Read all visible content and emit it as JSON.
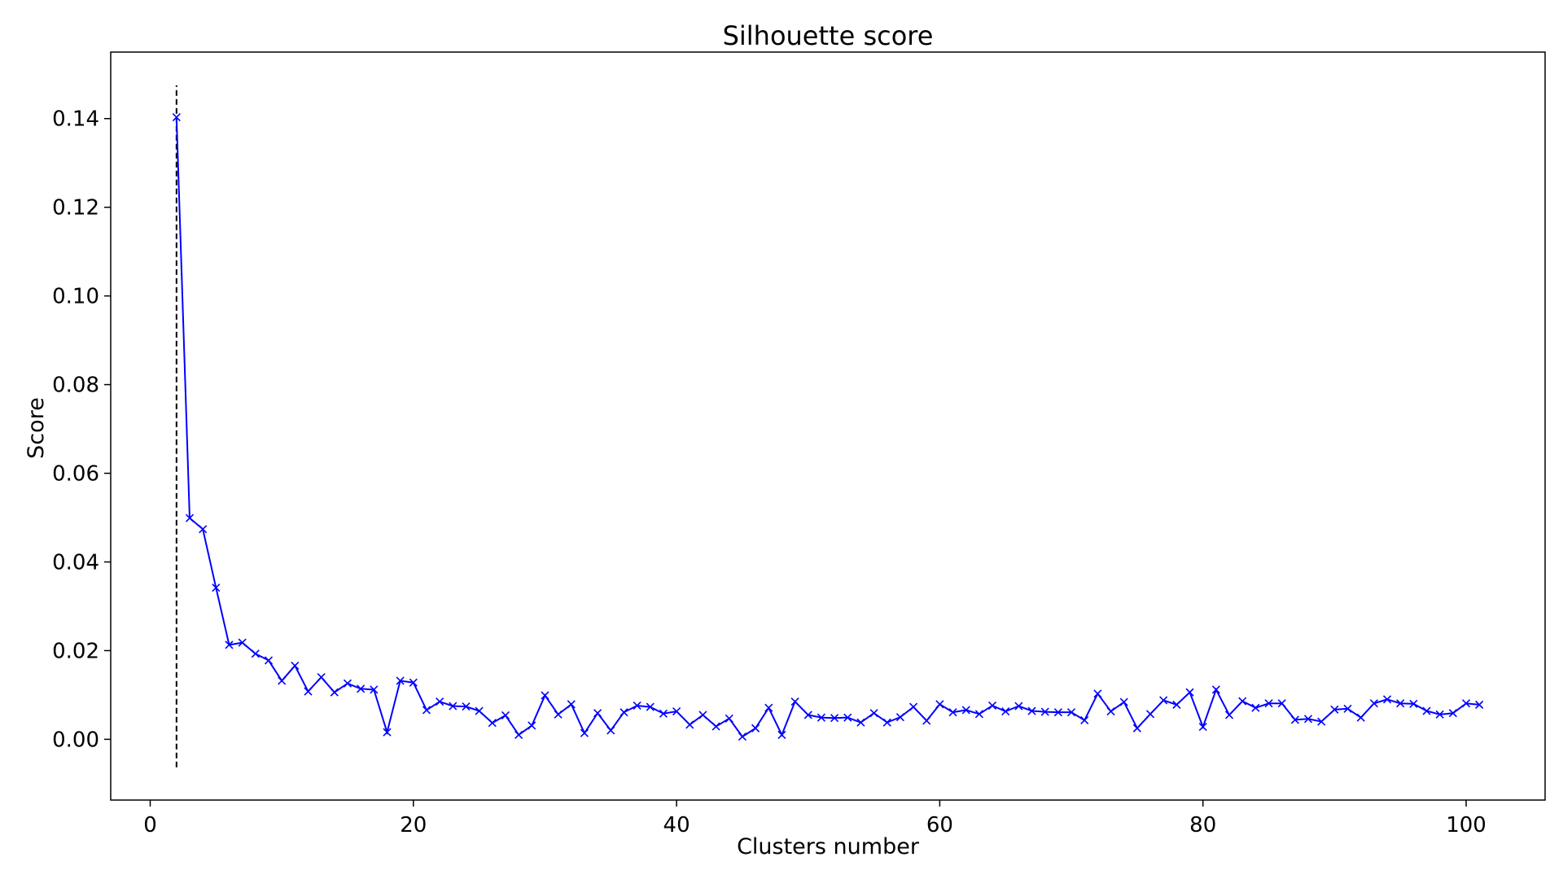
{
  "chart_data": {
    "type": "line",
    "title": "Silhouette score",
    "xlabel": "Clusters number",
    "ylabel": "Score",
    "xlim": [
      -3,
      106
    ],
    "ylim": [
      -0.0137,
      0.155
    ],
    "xticks": [
      0,
      20,
      40,
      60,
      80,
      100
    ],
    "xtick_labels": [
      "0",
      "20",
      "40",
      "60",
      "80",
      "100"
    ],
    "yticks": [
      0.0,
      0.02,
      0.04,
      0.06,
      0.08,
      0.1,
      0.12,
      0.14
    ],
    "ytick_labels": [
      "0.00",
      "0.02",
      "0.04",
      "0.06",
      "0.08",
      "0.10",
      "0.12",
      "0.14"
    ],
    "grid": false,
    "series": [
      {
        "color": "#0000ff",
        "marker": "x",
        "x": [
          2,
          3,
          4,
          5,
          6,
          7,
          8,
          9,
          10,
          11,
          12,
          13,
          14,
          15,
          16,
          17,
          18,
          19,
          20,
          21,
          22,
          23,
          24,
          25,
          26,
          27,
          28,
          29,
          30,
          31,
          32,
          33,
          34,
          35,
          36,
          37,
          38,
          39,
          40,
          41,
          42,
          43,
          44,
          45,
          46,
          47,
          48,
          49,
          50,
          51,
          52,
          53,
          54,
          55,
          56,
          57,
          58,
          59,
          60,
          61,
          62,
          63,
          64,
          65,
          66,
          67,
          68,
          69,
          70,
          71,
          72,
          73,
          74,
          75,
          76,
          77,
          78,
          79,
          80,
          81,
          82,
          83,
          84,
          85,
          86,
          87,
          88,
          89,
          90,
          91,
          92,
          93,
          94,
          95,
          96,
          97,
          98,
          99,
          100,
          101
        ],
        "y": [
          0.1403,
          0.0499,
          0.0474,
          0.0342,
          0.0213,
          0.0218,
          0.0193,
          0.0178,
          0.0132,
          0.0166,
          0.0108,
          0.014,
          0.0106,
          0.0126,
          0.0114,
          0.0112,
          0.0016,
          0.0132,
          0.0128,
          0.0066,
          0.0085,
          0.0075,
          0.0074,
          0.0064,
          0.0037,
          0.0054,
          0.001,
          0.0031,
          0.0099,
          0.0056,
          0.0079,
          0.0014,
          0.0059,
          0.002,
          0.0061,
          0.0076,
          0.0073,
          0.0058,
          0.0063,
          0.0033,
          0.0055,
          0.0029,
          0.0047,
          0.0006,
          0.0025,
          0.0071,
          0.001,
          0.0085,
          0.0055,
          0.0049,
          0.0048,
          0.0049,
          0.0038,
          0.0059,
          0.0038,
          0.005,
          0.0073,
          0.0042,
          0.0079,
          0.0061,
          0.0066,
          0.0057,
          0.0076,
          0.0063,
          0.0075,
          0.0064,
          0.0062,
          0.0061,
          0.0061,
          0.0043,
          0.0103,
          0.0063,
          0.0084,
          0.0025,
          0.0057,
          0.0088,
          0.0078,
          0.0106,
          0.0028,
          0.0112,
          0.0055,
          0.0086,
          0.0071,
          0.0081,
          0.0081,
          0.0044,
          0.0046,
          0.004,
          0.0067,
          0.0069,
          0.0049,
          0.0081,
          0.009,
          0.0081,
          0.008,
          0.0064,
          0.0056,
          0.0059,
          0.0081,
          0.0078
        ]
      }
    ],
    "vline": {
      "x": 2,
      "y_from": -0.0063,
      "y_to": 0.1475,
      "color": "#000000",
      "style": "dashed"
    }
  }
}
